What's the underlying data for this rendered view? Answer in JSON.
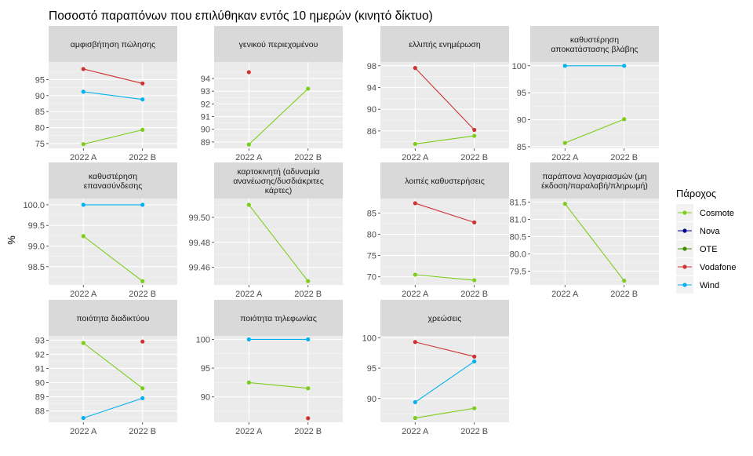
{
  "chart_data": {
    "type": "line",
    "title": "Ποσοστό παραπόνων που επιλύθηκαν εντός 10 ημερών (κινητό δίκτυο)",
    "ylabel": "%",
    "xlabel": "",
    "categories": [
      "2022 A",
      "2022 B"
    ],
    "grid": true,
    "legend": {
      "title": "Πάροχος",
      "position": "right",
      "entries": [
        {
          "name": "Cosmote",
          "color": "#7CCD1B"
        },
        {
          "name": "Nova",
          "color": "#00008B"
        },
        {
          "name": "OTE",
          "color": "#458B00"
        },
        {
          "name": "Vodafone",
          "color": "#CD3333"
        },
        {
          "name": "Wind",
          "color": "#00B2EE"
        }
      ]
    },
    "facets": [
      {
        "title": [
          "αμφισβήτηση πώλησης"
        ],
        "ylim": [
          73.5,
          100.5
        ],
        "yticks": [
          75,
          80,
          85,
          90,
          95
        ],
        "series": [
          {
            "provider": "Vodafone",
            "values": [
              98.3,
              93.8
            ]
          },
          {
            "provider": "Wind",
            "values": [
              91.2,
              88.8
            ]
          },
          {
            "provider": "Cosmote",
            "values": [
              74.8,
              79.3
            ]
          }
        ]
      },
      {
        "title": [
          "γενικού περιεχομένου"
        ],
        "ylim": [
          88.5,
          95.3
        ],
        "yticks": [
          89,
          90,
          91,
          92,
          93,
          94
        ],
        "series": [
          {
            "provider": "Vodafone",
            "values": [
              94.5,
              null
            ]
          },
          {
            "provider": "Cosmote",
            "values": [
              88.8,
              93.2
            ]
          }
        ]
      },
      {
        "title": [
          "ελλιπής ενημέρωση"
        ],
        "ylim": [
          82.8,
          98.7
        ],
        "yticks": [
          86,
          90,
          94,
          98
        ],
        "series": [
          {
            "provider": "Vodafone",
            "values": [
              97.6,
              86.2
            ]
          },
          {
            "provider": "Cosmote",
            "values": [
              83.6,
              85.1
            ]
          }
        ]
      },
      {
        "title": [
          "καθυστέρηση",
          "αποκατάστασης βλάβης"
        ],
        "ylim": [
          84.7,
          100.7
        ],
        "yticks": [
          85,
          90,
          95,
          100
        ],
        "series": [
          {
            "provider": "Wind",
            "values": [
              100,
              100
            ]
          },
          {
            "provider": "Cosmote",
            "values": [
              85.7,
              90.1
            ]
          }
        ]
      },
      {
        "title": [
          "καθυστέρηση",
          "επανασύνδεσης"
        ],
        "ylim": [
          98.06,
          100.15
        ],
        "yticks": [
          98.5,
          99.0,
          99.5,
          100.0
        ],
        "yticklabels": [
          "98.5",
          "99.0",
          "99.5",
          "100.0"
        ],
        "series": [
          {
            "provider": "Wind",
            "values": [
              100,
              100
            ]
          },
          {
            "provider": "Cosmote",
            "values": [
              99.24,
              98.15
            ]
          }
        ]
      },
      {
        "title": [
          "καρτοκινητή (αδυναμία",
          "ανανέωσης/δυσδιάκριτες",
          "κάρτες)"
        ],
        "ylim": [
          99.446,
          99.515
        ],
        "yticks": [
          99.46,
          99.48,
          99.5
        ],
        "yticklabels": [
          "99.46",
          "99.48",
          "99.50"
        ],
        "series": [
          {
            "provider": "Cosmote",
            "values": [
              99.51,
              99.449
            ]
          }
        ]
      },
      {
        "title": [
          "λοιπές καθυστερήσεις"
        ],
        "ylim": [
          68.1,
          88.4
        ],
        "yticks": [
          70,
          75,
          80,
          85
        ],
        "series": [
          {
            "provider": "Vodafone",
            "values": [
              87.3,
              82.8
            ]
          },
          {
            "provider": "Cosmote",
            "values": [
              70.5,
              69.2
            ]
          }
        ]
      },
      {
        "title": [
          "παράπονα λογαριασμών (μη",
          "έκδοση/παραλαβή/πληρωμή)"
        ],
        "ylim": [
          79.1,
          81.6
        ],
        "yticks": [
          79.5,
          80.0,
          80.5,
          81.0,
          81.5
        ],
        "yticklabels": [
          "79.5",
          "80.0",
          "80.5",
          "81.0",
          "81.5"
        ],
        "series": [
          {
            "provider": "Cosmote",
            "values": [
              81.45,
              79.22
            ]
          }
        ]
      },
      {
        "title": [
          "ποιότητα διαδικτύου"
        ],
        "ylim": [
          87.2,
          93.3
        ],
        "yticks": [
          88,
          89,
          90,
          91,
          92,
          93
        ],
        "series": [
          {
            "provider": "Vodafone",
            "values": [
              null,
              92.9
            ]
          },
          {
            "provider": "Cosmote",
            "values": [
              92.8,
              89.6
            ]
          },
          {
            "provider": "Wind",
            "values": [
              87.5,
              88.9
            ]
          }
        ]
      },
      {
        "title": [
          "ποιότητα τηλεφωνίας"
        ],
        "ylim": [
          85.6,
          100.6
        ],
        "yticks": [
          90,
          95,
          100
        ],
        "series": [
          {
            "provider": "Wind",
            "values": [
              100,
              100
            ]
          },
          {
            "provider": "Cosmote",
            "values": [
              92.5,
              91.5
            ]
          },
          {
            "provider": "Vodafone",
            "values": [
              null,
              86.3
            ]
          }
        ]
      },
      {
        "title": [
          "χρεώσεις"
        ],
        "ylim": [
          86.1,
          100.3
        ],
        "yticks": [
          90,
          95,
          100
        ],
        "series": [
          {
            "provider": "Vodafone",
            "values": [
              99.3,
              96.9
            ]
          },
          {
            "provider": "Wind",
            "values": [
              89.4,
              96.1
            ]
          },
          {
            "provider": "Cosmote",
            "values": [
              86.8,
              88.4
            ]
          }
        ]
      }
    ]
  }
}
